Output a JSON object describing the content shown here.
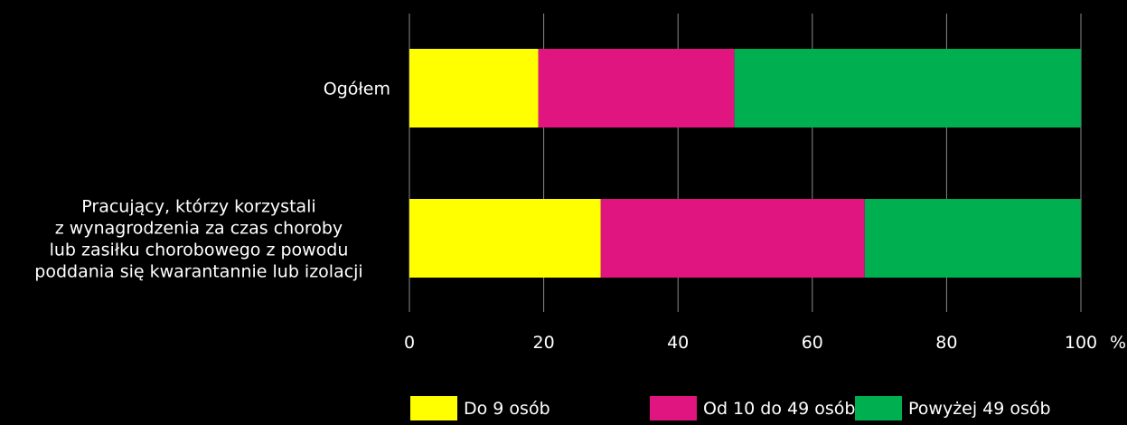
{
  "chart_data": {
    "type": "bar",
    "orientation": "horizontal",
    "stacked": true,
    "categories": [
      "Ogółem",
      "Pracujący, którzy korzystali z wynagrodzenia za czas choroby lub zasiłku chorobowego z powodu poddania się kwarantannie lub izolacji"
    ],
    "category_lines": [
      [
        "Ogółem"
      ],
      [
        "Pracujący, którzy korzystali",
        "z wynagrodzenia za czas choroby",
        "lub zasiłku chorobowego z powodu",
        "poddania się kwarantannie lub izolacji"
      ]
    ],
    "series": [
      {
        "name": "Do 9 osób",
        "color": "#ffff00",
        "values": [
          19.2,
          28.5
        ]
      },
      {
        "name": "Od 10 do 49 osób",
        "color": "#e0157f",
        "values": [
          29.2,
          39.3
        ]
      },
      {
        "name": "Powyżej 49 osób",
        "color": "#00b050",
        "values": [
          51.6,
          32.2
        ]
      }
    ],
    "xlim": [
      0,
      100
    ],
    "xticks": [
      0,
      20,
      40,
      60,
      80,
      100
    ],
    "x_unit": "%",
    "grid": true,
    "legend_position": "bottom"
  }
}
